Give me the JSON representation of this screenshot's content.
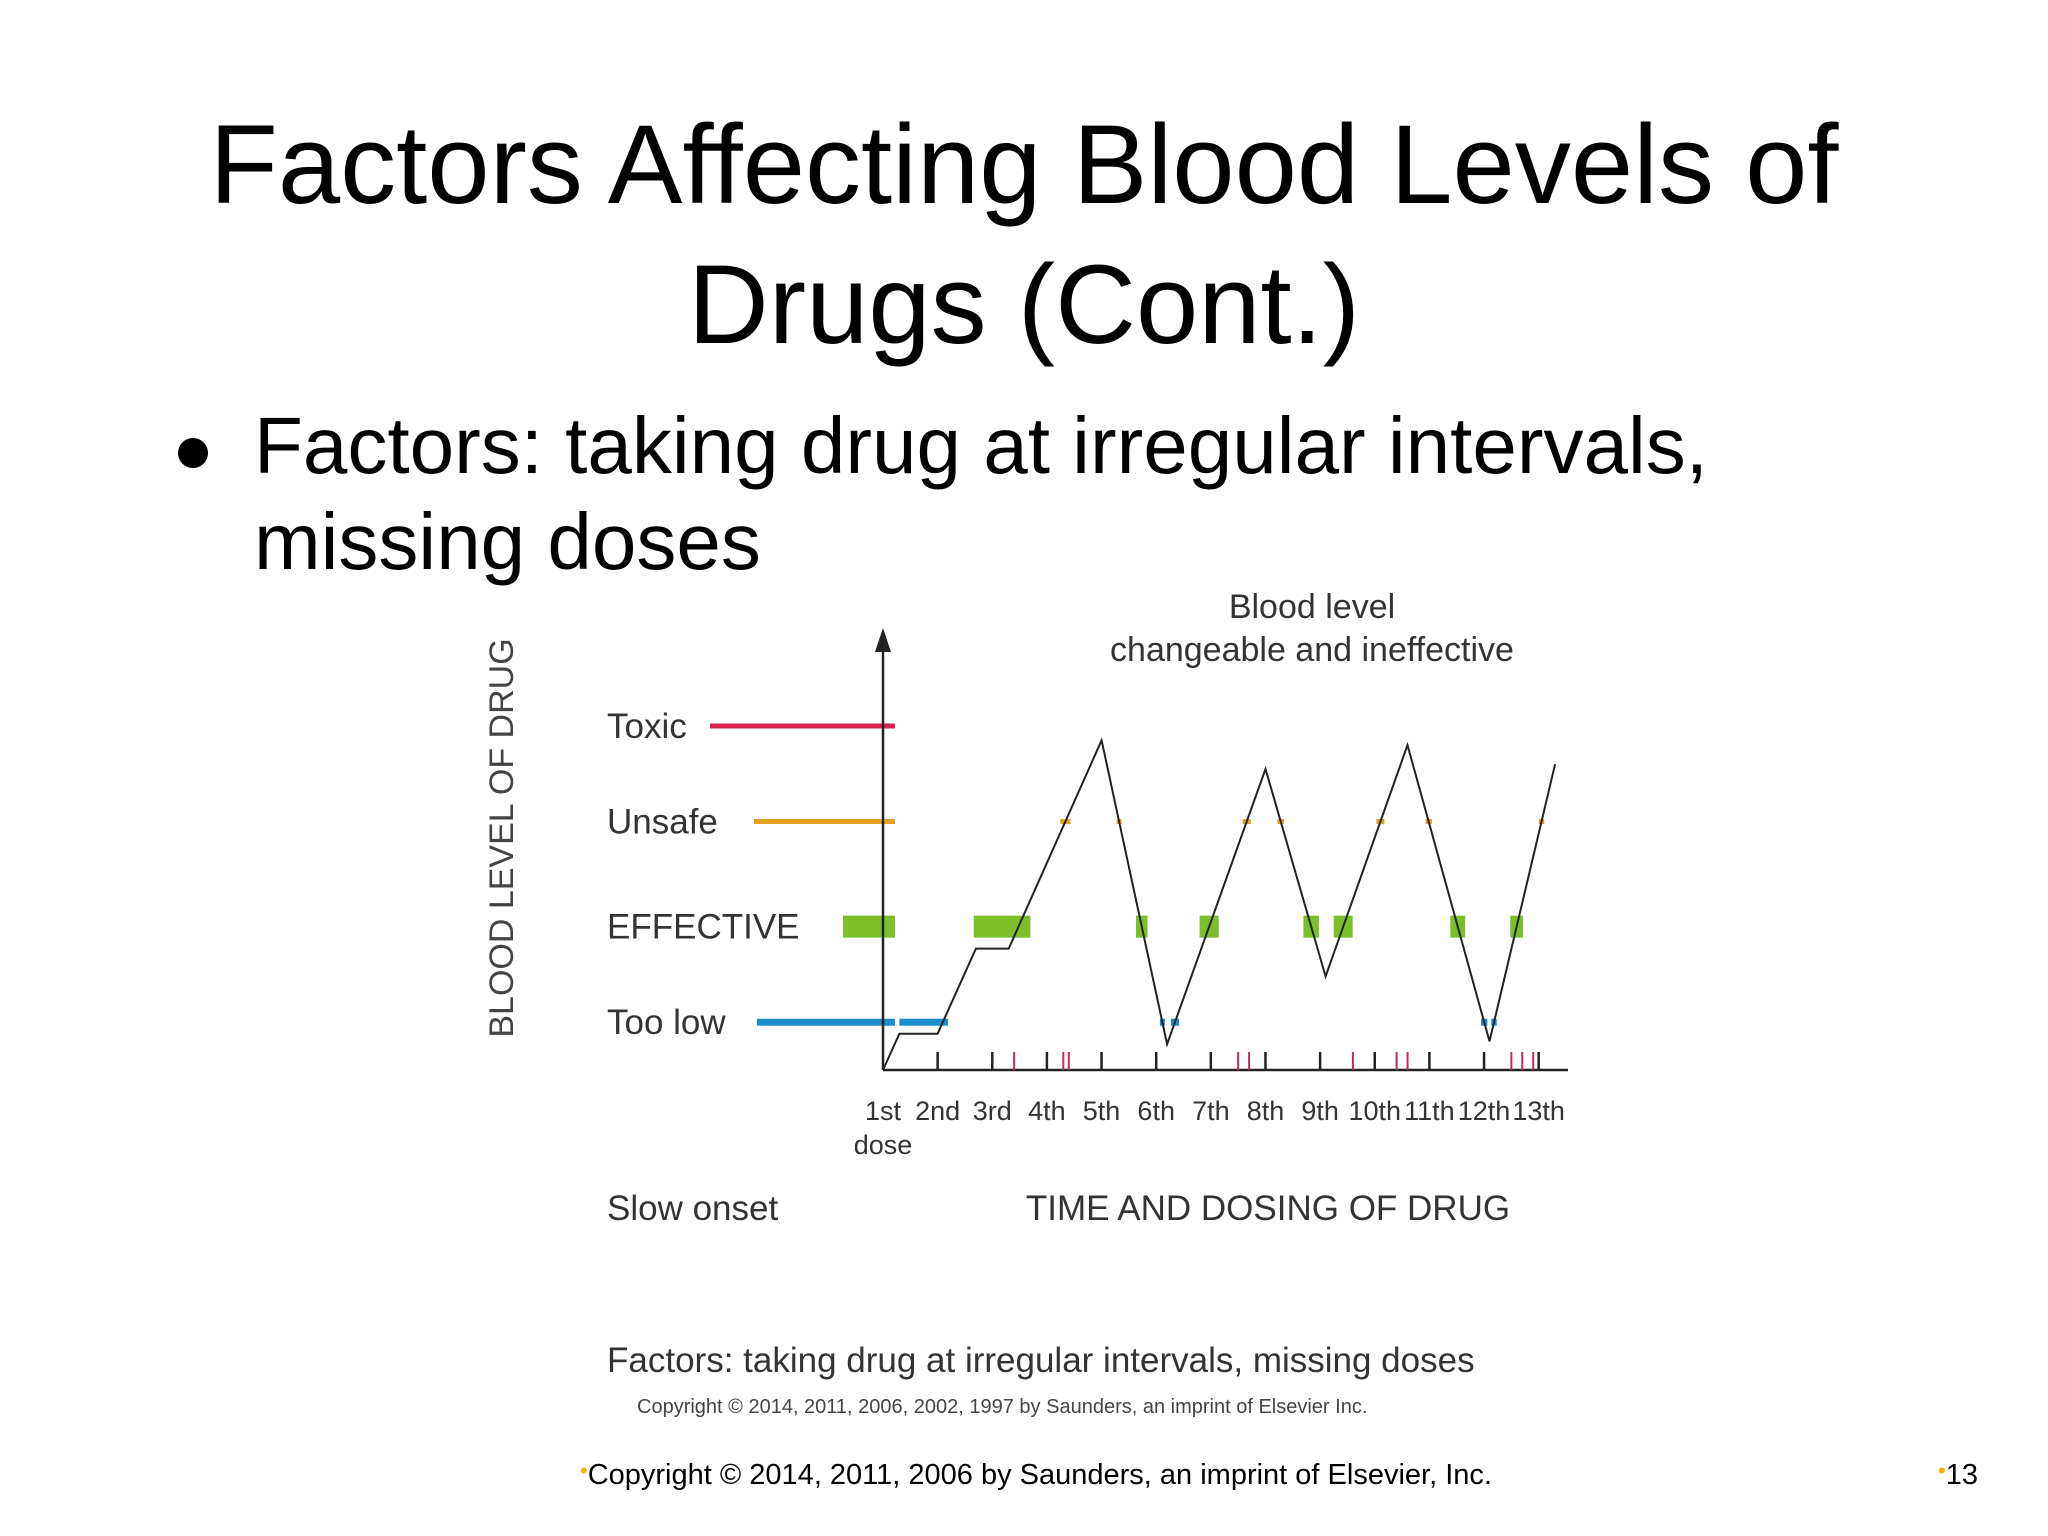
{
  "slide": {
    "title_line1": "Factors Affecting Blood Levels of",
    "title_line2": "Drugs (Cont.)",
    "bullet": "Factors: taking drug at irregular intervals, missing doses",
    "footer_copyright": "Copyright © 2014, 2011, 2006 by Saunders, an imprint of Elsevier, Inc.",
    "page_number": "13"
  },
  "chart_data": {
    "type": "line",
    "title": "Blood level changeable and ineffective",
    "title_line1": "Blood level",
    "title_line2": "changeable and ineffective",
    "ylabel": "BLOOD LEVEL OF DRUG",
    "xlabel": "TIME AND DOSING OF DRUG",
    "annotation": "Slow onset",
    "caption": "Factors: taking drug at irregular intervals, missing doses",
    "copyright": "Copyright © 2014, 2011, 2006, 2002, 1997 by Saunders, an imprint of Elsevier Inc.",
    "xlim": [
      0,
      12.5
    ],
    "ylim": [
      0,
      4.5
    ],
    "levels": [
      {
        "name": "Toxic",
        "value": 3.6,
        "color": "#d6224f"
      },
      {
        "name": "Unsafe",
        "value": 2.6,
        "color": "#e4a224"
      },
      {
        "name": "EFFECTIVE",
        "value": 1.5,
        "color": "#7cbf2a"
      },
      {
        "name": "Too low",
        "value": 0.5,
        "color": "#1b8fcb"
      }
    ],
    "dose_labels": [
      "1st",
      "2nd",
      "3rd",
      "4th",
      "5th",
      "6th",
      "7th",
      "8th",
      "9th",
      "10th",
      "11th",
      "12th",
      "13th"
    ],
    "dose_sublabel": "dose",
    "dose_times": [
      0,
      1,
      2,
      3,
      4,
      5,
      6,
      7,
      8,
      9,
      10,
      11,
      12
    ],
    "extra_tick_times": [
      2.4,
      3.3,
      3.4,
      6.5,
      6.7,
      8.6,
      9.4,
      9.6,
      11.5,
      11.7,
      11.9
    ],
    "series": [
      {
        "x": [
          0,
          0.3,
          1.0,
          1.7,
          2.3,
          4.0,
          5.2,
          7.0,
          8.1,
          9.6,
          11.1,
          12.3
        ],
        "y": [
          0,
          0.38,
          0.38,
          1.27,
          1.27,
          3.45,
          0.27,
          3.15,
          0.98,
          3.4,
          0.3,
          3.2
        ]
      }
    ]
  }
}
